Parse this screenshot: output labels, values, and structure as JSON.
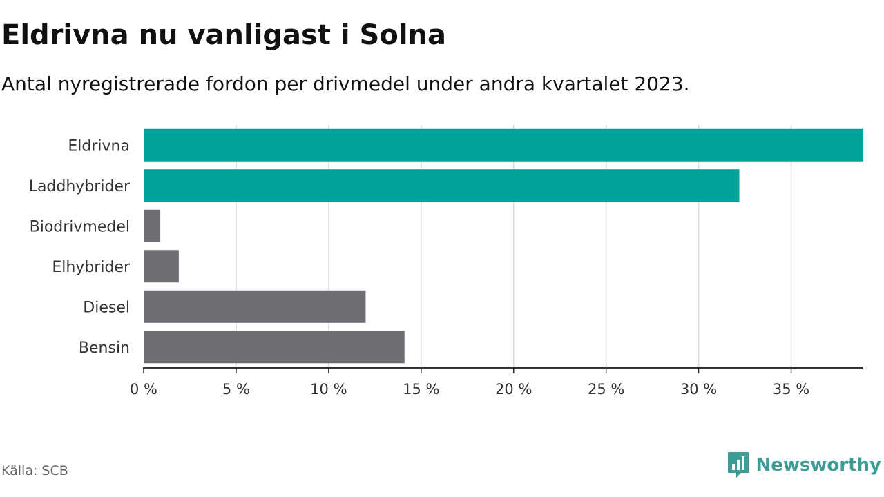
{
  "title": "Eldrivna nu vanligast i Solna",
  "subtitle": "Antal nyregistrerade fordon per drivmedel under andra kvartalet 2023.",
  "source": "Källa: SCB",
  "brand": {
    "name": "Newsworthy",
    "logo_icon": "newsworthy-logo-icon",
    "color": "#3b9d95"
  },
  "colors": {
    "highlight": "#00a39a",
    "other": "#6e6d74",
    "grid": "#d9d9d9",
    "axis": "#333333"
  },
  "chart_data": {
    "type": "bar",
    "orientation": "horizontal",
    "title": "Eldrivna nu vanligast i Solna",
    "subtitle": "Antal nyregistrerade fordon per drivmedel under andra kvartalet 2023.",
    "xlabel": "",
    "ylabel": "",
    "categories": [
      "Eldrivna",
      "Laddhybrider",
      "Biodrivmedel",
      "Elhybrider",
      "Diesel",
      "Bensin"
    ],
    "values": [
      38.9,
      32.2,
      0.9,
      1.9,
      12.0,
      14.1
    ],
    "highlighted": [
      true,
      true,
      false,
      false,
      false,
      false
    ],
    "unit": "%",
    "xlim": [
      0,
      38.9
    ],
    "xticks": [
      0,
      5,
      10,
      15,
      20,
      25,
      30,
      35
    ],
    "xtick_labels": [
      "0 %",
      "5 %",
      "10 %",
      "15 %",
      "20 %",
      "25 %",
      "30 %",
      "35 %"
    ],
    "grid": true,
    "legend": "none"
  }
}
